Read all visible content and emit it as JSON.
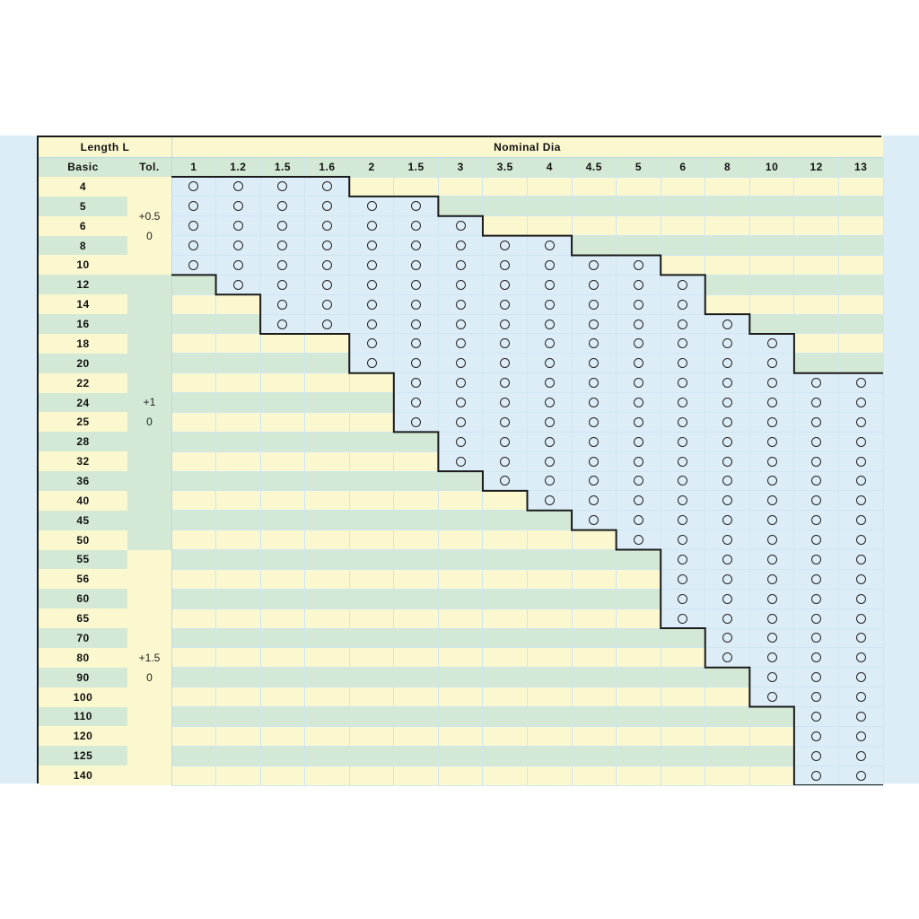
{
  "header": {
    "length_label": "Length  L",
    "dia_label": "Nominal  Dia",
    "basic_label": "Basic",
    "tol_label": "Tol."
  },
  "diameters": [
    "1",
    "1.2",
    "1.5",
    "1.6",
    "2",
    "1.5",
    "3",
    "3.5",
    "4",
    "4.5",
    "5",
    "6",
    "8",
    "10",
    "12",
    "13"
  ],
  "lengths": [
    "4",
    "5",
    "6",
    "8",
    "10",
    "12",
    "14",
    "16",
    "18",
    "20",
    "22",
    "24",
    "25",
    "28",
    "32",
    "36",
    "40",
    "45",
    "50",
    "55",
    "56",
    "60",
    "65",
    "70",
    "80",
    "90",
    "100",
    "110",
    "120",
    "125",
    "140"
  ],
  "tolerances": [
    {
      "upper": "+0.5",
      "lower": "0",
      "first_row": 0,
      "last_row": 4
    },
    {
      "upper": "+1",
      "lower": "0",
      "first_row": 5,
      "last_row": 18
    },
    {
      "upper": "+1.5",
      "lower": "0",
      "first_row": 19,
      "last_row": 30
    }
  ],
  "availability": [
    {
      "diameter": "1",
      "first_row": 0,
      "last_row": 4
    },
    {
      "diameter": "1.2",
      "first_row": 0,
      "last_row": 5
    },
    {
      "diameter": "1.5",
      "first_row": 0,
      "last_row": 7
    },
    {
      "diameter": "1.6",
      "first_row": 0,
      "last_row": 7
    },
    {
      "diameter": "2",
      "first_row": 1,
      "last_row": 9
    },
    {
      "diameter": "1.5",
      "first_row": 1,
      "last_row": 12
    },
    {
      "diameter": "3",
      "first_row": 2,
      "last_row": 14
    },
    {
      "diameter": "3.5",
      "first_row": 3,
      "last_row": 15
    },
    {
      "diameter": "4",
      "first_row": 3,
      "last_row": 16
    },
    {
      "diameter": "4.5",
      "first_row": 4,
      "last_row": 17
    },
    {
      "diameter": "5",
      "first_row": 4,
      "last_row": 18
    },
    {
      "diameter": "6",
      "first_row": 5,
      "last_row": 22
    },
    {
      "diameter": "8",
      "first_row": 7,
      "last_row": 24
    },
    {
      "diameter": "10",
      "first_row": 8,
      "last_row": 26
    },
    {
      "diameter": "12",
      "first_row": 10,
      "last_row": 30
    },
    {
      "diameter": "13",
      "first_row": 10,
      "last_row": 30
    }
  ],
  "mark_symbol": "○",
  "colors": {
    "yellow": "#fbf8cf",
    "green": "#d3e9d5",
    "blue": "#dcedf8",
    "border": "#1a1a1a"
  }
}
